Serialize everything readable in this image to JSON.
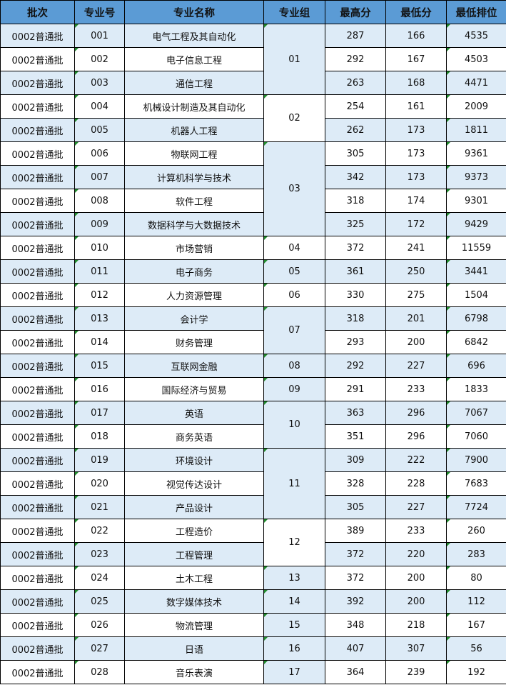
{
  "colors": {
    "header": "#5b9bd5",
    "stripe": "#ddebf7",
    "border": "#000000"
  },
  "headers": [
    "批次",
    "专业号",
    "专业名称",
    "专业组",
    "最高分",
    "最低分",
    "最低排位"
  ],
  "groups": [
    {
      "group": "01",
      "rows": [
        [
          "0002普通批",
          "001",
          "电气工程及其自动化",
          "287",
          "166",
          "4535"
        ],
        [
          "0002普通批",
          "002",
          "电子信息工程",
          "292",
          "167",
          "4503"
        ],
        [
          "0002普通批",
          "003",
          "通信工程",
          "263",
          "168",
          "4471"
        ]
      ]
    },
    {
      "group": "02",
      "rows": [
        [
          "0002普通批",
          "004",
          "机械设计制造及其自动化",
          "254",
          "161",
          "2009"
        ],
        [
          "0002普通批",
          "005",
          "机器人工程",
          "262",
          "173",
          "1811"
        ]
      ]
    },
    {
      "group": "03",
      "rows": [
        [
          "0002普通批",
          "006",
          "物联网工程",
          "305",
          "173",
          "9361"
        ],
        [
          "0002普通批",
          "007",
          "计算机科学与技术",
          "342",
          "173",
          "9373"
        ],
        [
          "0002普通批",
          "008",
          "软件工程",
          "318",
          "174",
          "9301"
        ],
        [
          "0002普通批",
          "009",
          "数据科学与大数据技术",
          "325",
          "172",
          "9429"
        ]
      ]
    },
    {
      "group": "04",
      "rows": [
        [
          "0002普通批",
          "010",
          "市场营销",
          "372",
          "241",
          "11559"
        ]
      ]
    },
    {
      "group": "05",
      "rows": [
        [
          "0002普通批",
          "011",
          "电子商务",
          "361",
          "250",
          "3441"
        ]
      ]
    },
    {
      "group": "06",
      "rows": [
        [
          "0002普通批",
          "012",
          "人力资源管理",
          "330",
          "275",
          "1504"
        ]
      ]
    },
    {
      "group": "07",
      "rows": [
        [
          "0002普通批",
          "013",
          "会计学",
          "318",
          "201",
          "6798"
        ],
        [
          "0002普通批",
          "014",
          "财务管理",
          "293",
          "200",
          "6842"
        ]
      ]
    },
    {
      "group": "08",
      "rows": [
        [
          "0002普通批",
          "015",
          "互联网金融",
          "292",
          "227",
          "696"
        ]
      ]
    },
    {
      "group": "09",
      "rows": [
        [
          "0002普通批",
          "016",
          "国际经济与贸易",
          "291",
          "233",
          "1833"
        ]
      ]
    },
    {
      "group": "10",
      "rows": [
        [
          "0002普通批",
          "017",
          "英语",
          "363",
          "296",
          "7067"
        ],
        [
          "0002普通批",
          "018",
          "商务英语",
          "351",
          "296",
          "7060"
        ]
      ]
    },
    {
      "group": "11",
      "rows": [
        [
          "0002普通批",
          "019",
          "环境设计",
          "309",
          "222",
          "7900"
        ],
        [
          "0002普通批",
          "020",
          "视觉传达设计",
          "328",
          "228",
          "7683"
        ],
        [
          "0002普通批",
          "021",
          "产品设计",
          "305",
          "227",
          "7724"
        ]
      ]
    },
    {
      "group": "12",
      "rows": [
        [
          "0002普通批",
          "022",
          "工程造价",
          "389",
          "233",
          "260"
        ],
        [
          "0002普通批",
          "023",
          "工程管理",
          "372",
          "220",
          "283"
        ]
      ]
    },
    {
      "group": "13",
      "rows": [
        [
          "0002普通批",
          "024",
          "土木工程",
          "372",
          "200",
          "80"
        ]
      ]
    },
    {
      "group": "14",
      "rows": [
        [
          "0002普通批",
          "025",
          "数字媒体技术",
          "392",
          "200",
          "112"
        ]
      ]
    },
    {
      "group": "15",
      "rows": [
        [
          "0002普通批",
          "026",
          "物流管理",
          "348",
          "218",
          "167"
        ]
      ]
    },
    {
      "group": "16",
      "rows": [
        [
          "0002普通批",
          "027",
          "日语",
          "407",
          "307",
          "56"
        ]
      ]
    },
    {
      "group": "17",
      "rows": [
        [
          "0002普通批",
          "028",
          "音乐表演",
          "364",
          "239",
          "192"
        ]
      ]
    }
  ]
}
